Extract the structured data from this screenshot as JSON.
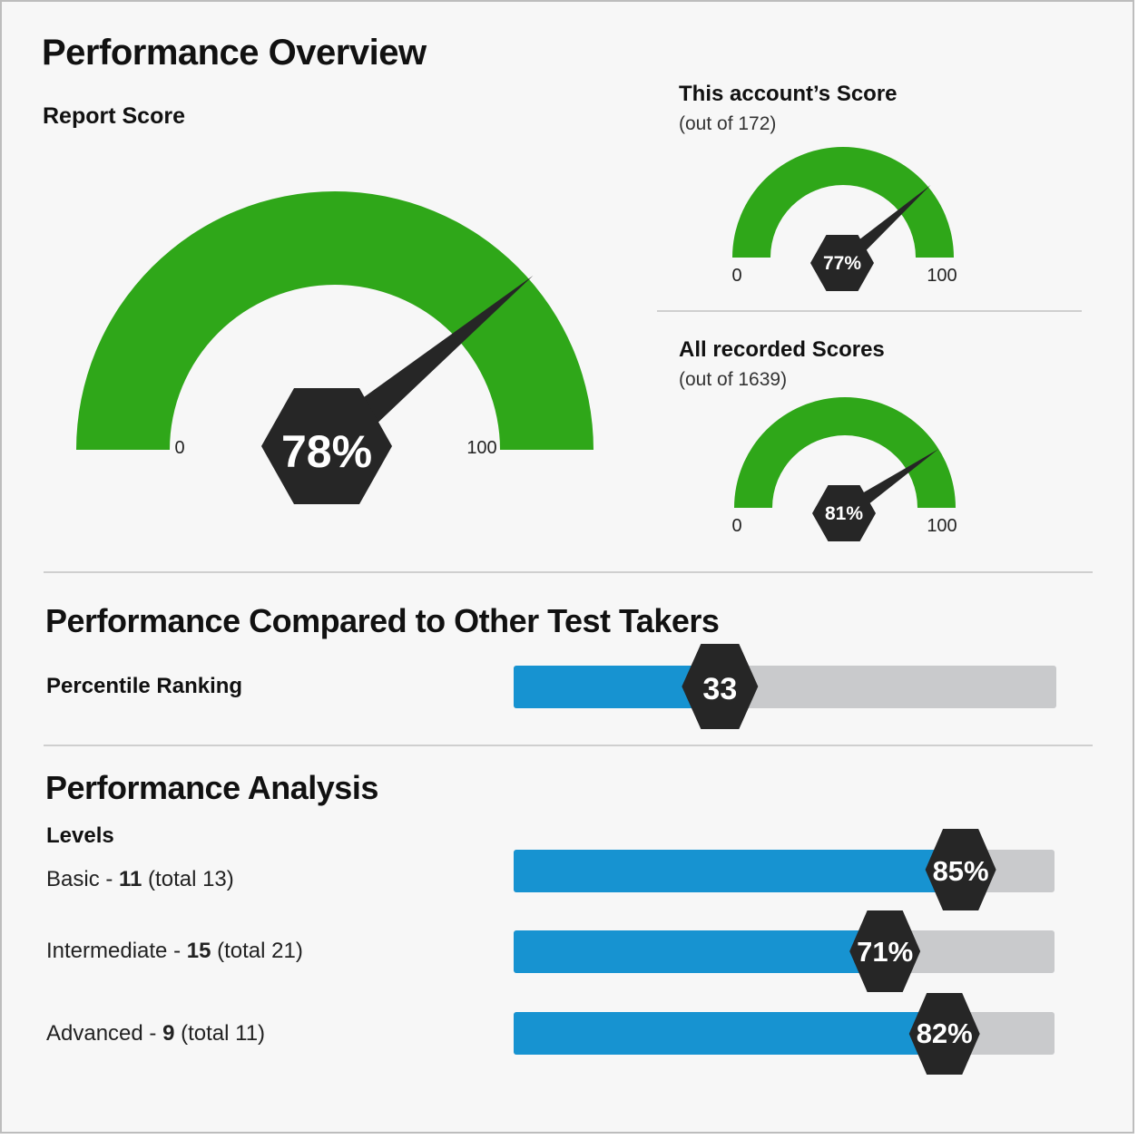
{
  "header": {
    "title": "Performance Overview"
  },
  "report_score": {
    "label": "Report Score",
    "value": 78,
    "value_text": "78%",
    "min_label": "0",
    "max_label": "100"
  },
  "account_score": {
    "title": "This account’s Score",
    "subtitle": "(out of 172)",
    "value": 77,
    "value_text": "77%",
    "min_label": "0",
    "max_label": "100"
  },
  "all_scores": {
    "title": "All recorded Scores",
    "subtitle": "(out of 1639)",
    "value": 81,
    "value_text": "81%",
    "min_label": "0",
    "max_label": "100"
  },
  "comparison": {
    "title": "Performance Compared to Other Test Takers",
    "percentile_label": "Percentile Ranking",
    "percentile_value": 33,
    "percentile_text": "33"
  },
  "analysis": {
    "title": "Performance Analysis",
    "levels_label": "Levels",
    "levels": [
      {
        "name": "Basic - ",
        "count": "11",
        "total": " (total 13)",
        "percent": 85,
        "percent_text": "85%"
      },
      {
        "name": "Intermediate - ",
        "count": "15",
        "total": " (total 21)",
        "percent": 71,
        "percent_text": "71%"
      },
      {
        "name": "Advanced - ",
        "count": "9",
        "total": " (total 11)",
        "percent": 82,
        "percent_text": "82%"
      }
    ]
  },
  "colors": {
    "gauge_green": "#2fa719",
    "bar_blue": "#1793d1",
    "bar_track": "#c9cacc",
    "badge_dark": "#262626"
  }
}
